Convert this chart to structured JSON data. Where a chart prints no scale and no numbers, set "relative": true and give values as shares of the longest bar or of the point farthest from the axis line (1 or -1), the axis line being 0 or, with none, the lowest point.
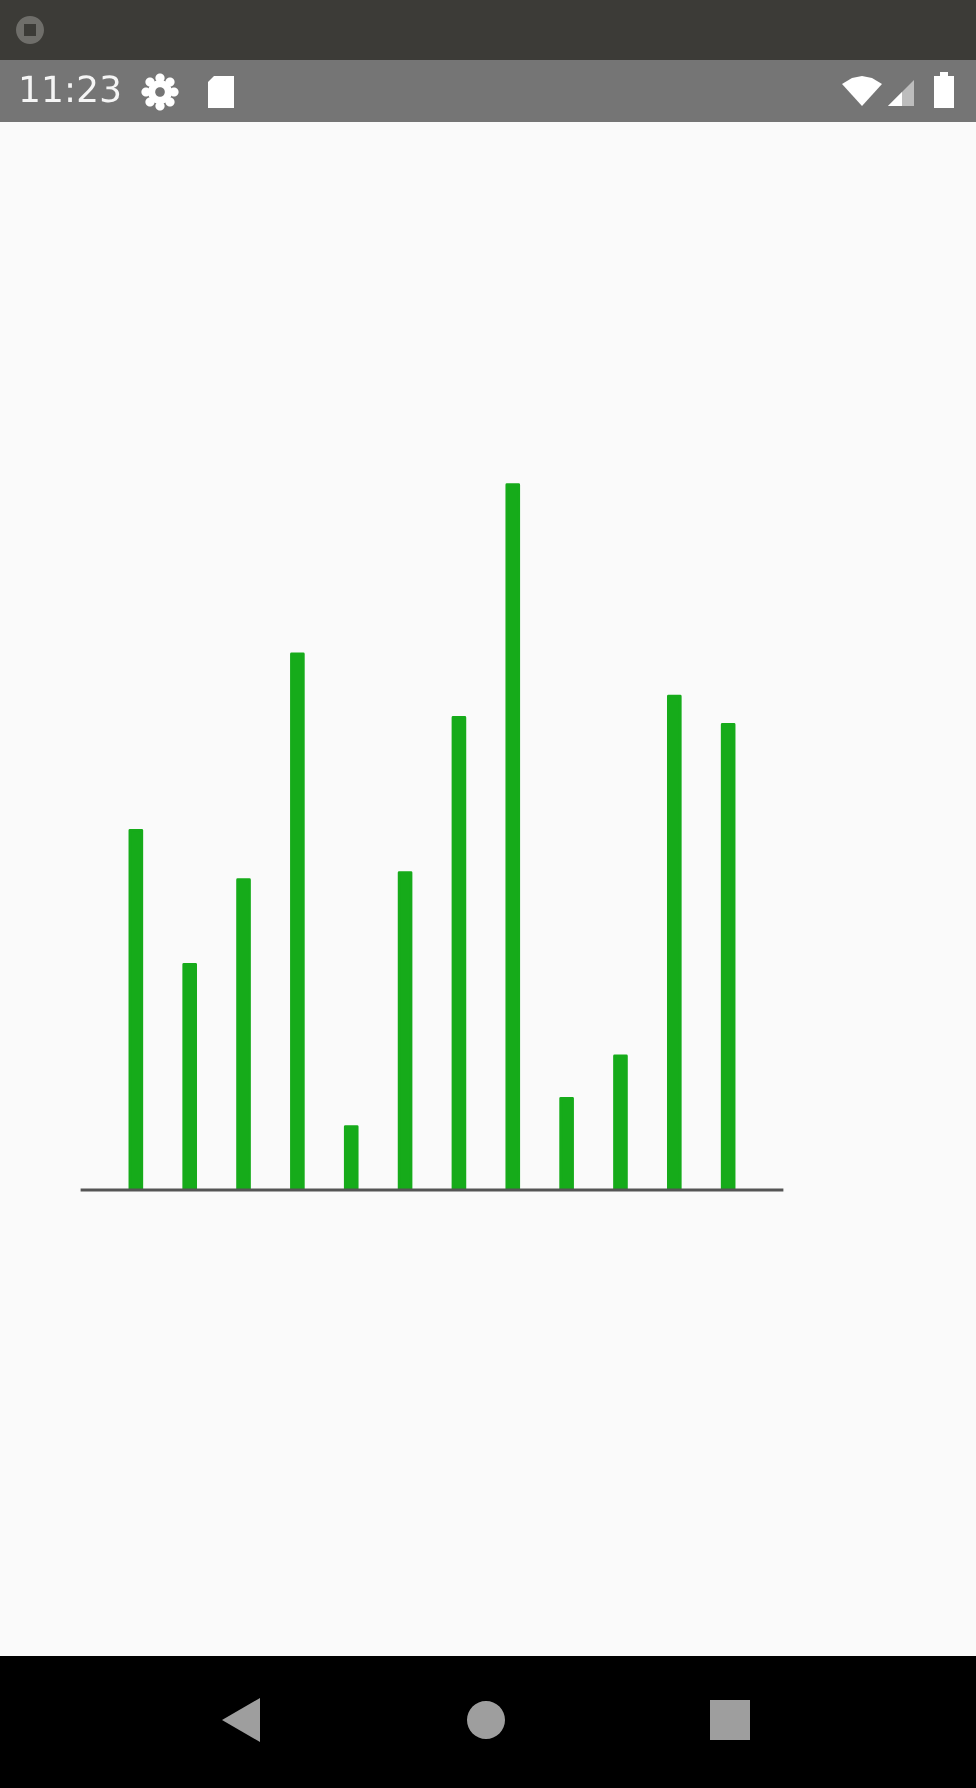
{
  "chart_data": {
    "type": "bar",
    "relative": true,
    "categories": [
      null,
      null,
      null,
      null,
      null,
      null,
      null,
      null,
      null,
      null,
      null,
      null
    ],
    "values": [
      0.51,
      0.32,
      0.44,
      0.76,
      0.09,
      0.45,
      0.67,
      1,
      0.13,
      0.19,
      0.7,
      0.66
    ],
    "color": "#16ab1a",
    "annotations": [
      "11:23"
    ]
  }
}
